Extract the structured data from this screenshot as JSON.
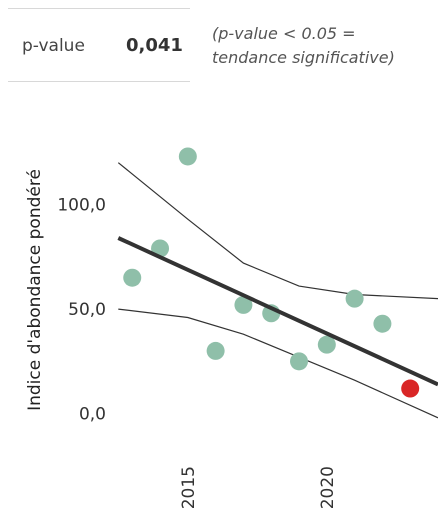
{
  "pvalue_panel": {
    "label": "p-value",
    "value": "0,041",
    "note": "(p-value < 0.05 =\ntendance significative)"
  },
  "chart_data": {
    "type": "scatter",
    "ylabel": "Indice d'abondance pondéré",
    "x_ticks": [
      2015,
      2020
    ],
    "x_tick_labels": [
      "2015",
      "2020"
    ],
    "y_ticks": [
      0,
      50,
      100
    ],
    "y_tick_labels": [
      "0,0",
      "50,0",
      "100,0"
    ],
    "xlim": [
      2012.2,
      2024.0
    ],
    "ylim": [
      -15,
      150
    ],
    "grid": false,
    "legend": "none",
    "colors": {
      "points": "#8fbfa9",
      "highlight": "#d92626",
      "trend": "#333333",
      "ci": "#333333"
    },
    "points": [
      {
        "x": 2013,
        "y": 65
      },
      {
        "x": 2014,
        "y": 79
      },
      {
        "x": 2015,
        "y": 123
      },
      {
        "x": 2016,
        "y": 30
      },
      {
        "x": 2017,
        "y": 52
      },
      {
        "x": 2018,
        "y": 48
      },
      {
        "x": 2019,
        "y": 25
      },
      {
        "x": 2020,
        "y": 33
      },
      {
        "x": 2021,
        "y": 55
      },
      {
        "x": 2022,
        "y": 43
      },
      {
        "x": 2023,
        "y": 12,
        "highlight": true
      }
    ],
    "trend": {
      "x": [
        2012.5,
        2024.0
      ],
      "y": [
        84,
        14
      ]
    },
    "ci_upper": {
      "x": [
        2012.5,
        2015,
        2017,
        2019,
        2021,
        2024
      ],
      "y": [
        120,
        93,
        72,
        61,
        57,
        55
      ]
    },
    "ci_lower": {
      "x": [
        2012.5,
        2015,
        2017,
        2019,
        2021,
        2024
      ],
      "y": [
        50,
        46,
        38,
        27,
        16,
        -2
      ]
    }
  }
}
